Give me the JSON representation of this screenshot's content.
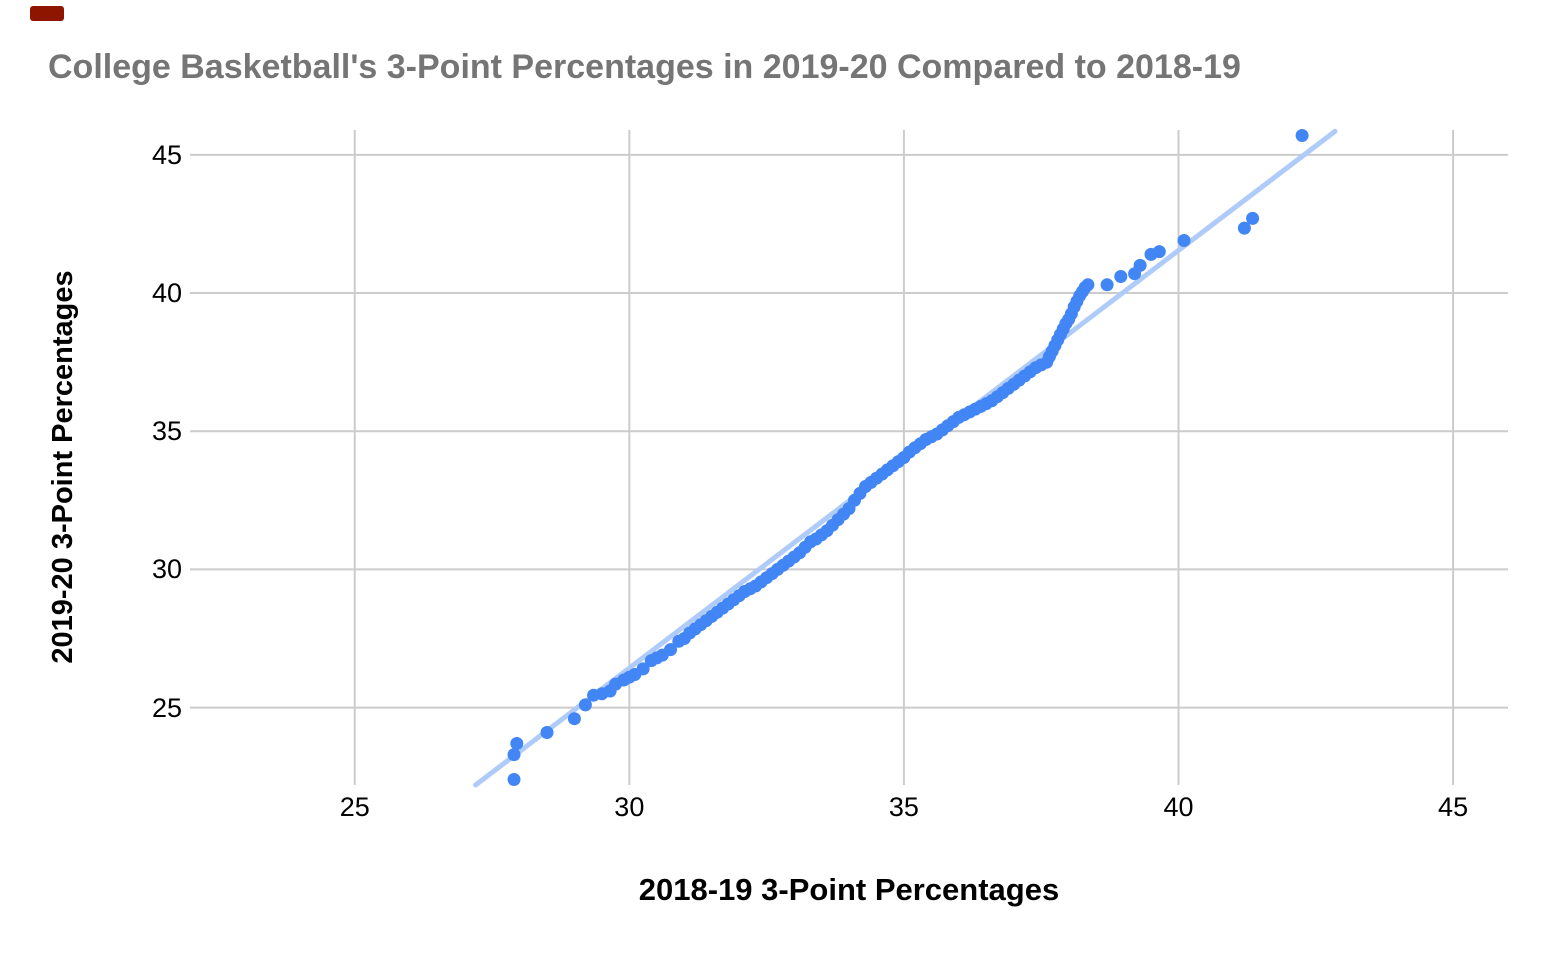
{
  "chart_data": {
    "type": "scatter",
    "title": "College Basketball's 3-Point Percentages in 2019-20 Compared to 2018-19",
    "xlabel": "2018-19 3-Point Percentages",
    "ylabel": "2019-20 3-Point Percentages",
    "xlim": [
      22.0,
      46.0
    ],
    "ylim": [
      22.2,
      45.9
    ],
    "x_ticks": [
      25,
      30,
      35,
      40,
      45
    ],
    "y_ticks": [
      25,
      30,
      35,
      40,
      45
    ],
    "grid": true,
    "legend": "none",
    "colors": {
      "point": "#4285f4",
      "trendline": "#aecbfa",
      "gridline": "#cccccc",
      "title": "#757575",
      "axis_text": "#000000"
    },
    "trendline": {
      "x1": 27.2,
      "y1": 22.2,
      "x2": 42.85,
      "y2": 45.85
    },
    "points": [
      [
        27.9,
        22.4
      ],
      [
        27.9,
        23.3
      ],
      [
        27.95,
        23.7
      ],
      [
        28.5,
        24.1
      ],
      [
        29.0,
        24.6
      ],
      [
        29.2,
        25.1
      ],
      [
        29.35,
        25.45
      ],
      [
        29.5,
        25.5
      ],
      [
        29.65,
        25.6
      ],
      [
        29.75,
        25.85
      ],
      [
        29.9,
        26.0
      ],
      [
        30.0,
        26.1
      ],
      [
        30.1,
        26.2
      ],
      [
        30.25,
        26.4
      ],
      [
        30.4,
        26.7
      ],
      [
        30.5,
        26.8
      ],
      [
        30.6,
        26.9
      ],
      [
        30.75,
        27.1
      ],
      [
        30.9,
        27.4
      ],
      [
        31.0,
        27.5
      ],
      [
        31.1,
        27.7
      ],
      [
        31.2,
        27.85
      ],
      [
        31.3,
        28.0
      ],
      [
        31.4,
        28.15
      ],
      [
        31.5,
        28.3
      ],
      [
        31.6,
        28.45
      ],
      [
        31.7,
        28.6
      ],
      [
        31.8,
        28.75
      ],
      [
        31.9,
        28.9
      ],
      [
        32.0,
        29.05
      ],
      [
        32.1,
        29.2
      ],
      [
        32.2,
        29.3
      ],
      [
        32.3,
        29.4
      ],
      [
        32.4,
        29.55
      ],
      [
        32.5,
        29.7
      ],
      [
        32.6,
        29.85
      ],
      [
        32.7,
        30.0
      ],
      [
        32.8,
        30.15
      ],
      [
        32.9,
        30.3
      ],
      [
        33.0,
        30.45
      ],
      [
        33.1,
        30.6
      ],
      [
        33.2,
        30.8
      ],
      [
        33.3,
        31.0
      ],
      [
        33.4,
        31.1
      ],
      [
        33.5,
        31.25
      ],
      [
        33.6,
        31.4
      ],
      [
        33.7,
        31.6
      ],
      [
        33.8,
        31.8
      ],
      [
        33.9,
        32.0
      ],
      [
        34.0,
        32.2
      ],
      [
        34.1,
        32.5
      ],
      [
        34.2,
        32.75
      ],
      [
        34.3,
        33.0
      ],
      [
        34.4,
        33.15
      ],
      [
        34.5,
        33.3
      ],
      [
        34.6,
        33.45
      ],
      [
        34.7,
        33.6
      ],
      [
        34.8,
        33.75
      ],
      [
        34.9,
        33.9
      ],
      [
        35.0,
        34.05
      ],
      [
        35.1,
        34.25
      ],
      [
        35.2,
        34.4
      ],
      [
        35.3,
        34.55
      ],
      [
        35.4,
        34.7
      ],
      [
        35.5,
        34.8
      ],
      [
        35.6,
        34.9
      ],
      [
        35.7,
        35.05
      ],
      [
        35.8,
        35.2
      ],
      [
        35.9,
        35.35
      ],
      [
        36.0,
        35.5
      ],
      [
        36.1,
        35.6
      ],
      [
        36.2,
        35.7
      ],
      [
        36.3,
        35.8
      ],
      [
        36.4,
        35.9
      ],
      [
        36.5,
        36.0
      ],
      [
        36.6,
        36.1
      ],
      [
        36.7,
        36.25
      ],
      [
        36.8,
        36.4
      ],
      [
        36.9,
        36.55
      ],
      [
        37.0,
        36.7
      ],
      [
        37.1,
        36.85
      ],
      [
        37.2,
        37.0
      ],
      [
        37.3,
        37.15
      ],
      [
        37.4,
        37.3
      ],
      [
        37.5,
        37.4
      ],
      [
        37.6,
        37.5
      ],
      [
        37.65,
        37.7
      ],
      [
        37.7,
        37.9
      ],
      [
        37.75,
        38.1
      ],
      [
        37.8,
        38.3
      ],
      [
        37.85,
        38.5
      ],
      [
        37.9,
        38.7
      ],
      [
        37.95,
        38.9
      ],
      [
        38.0,
        39.05
      ],
      [
        38.05,
        39.25
      ],
      [
        38.1,
        39.5
      ],
      [
        38.15,
        39.7
      ],
      [
        38.2,
        39.9
      ],
      [
        38.25,
        40.05
      ],
      [
        38.3,
        40.2
      ],
      [
        38.35,
        40.3
      ],
      [
        38.7,
        40.3
      ],
      [
        38.95,
        40.6
      ],
      [
        39.2,
        40.7
      ],
      [
        39.3,
        41.0
      ],
      [
        39.5,
        41.4
      ],
      [
        39.65,
        41.5
      ],
      [
        40.1,
        41.9
      ],
      [
        41.2,
        42.35
      ],
      [
        41.35,
        42.7
      ],
      [
        42.25,
        45.7
      ]
    ]
  }
}
